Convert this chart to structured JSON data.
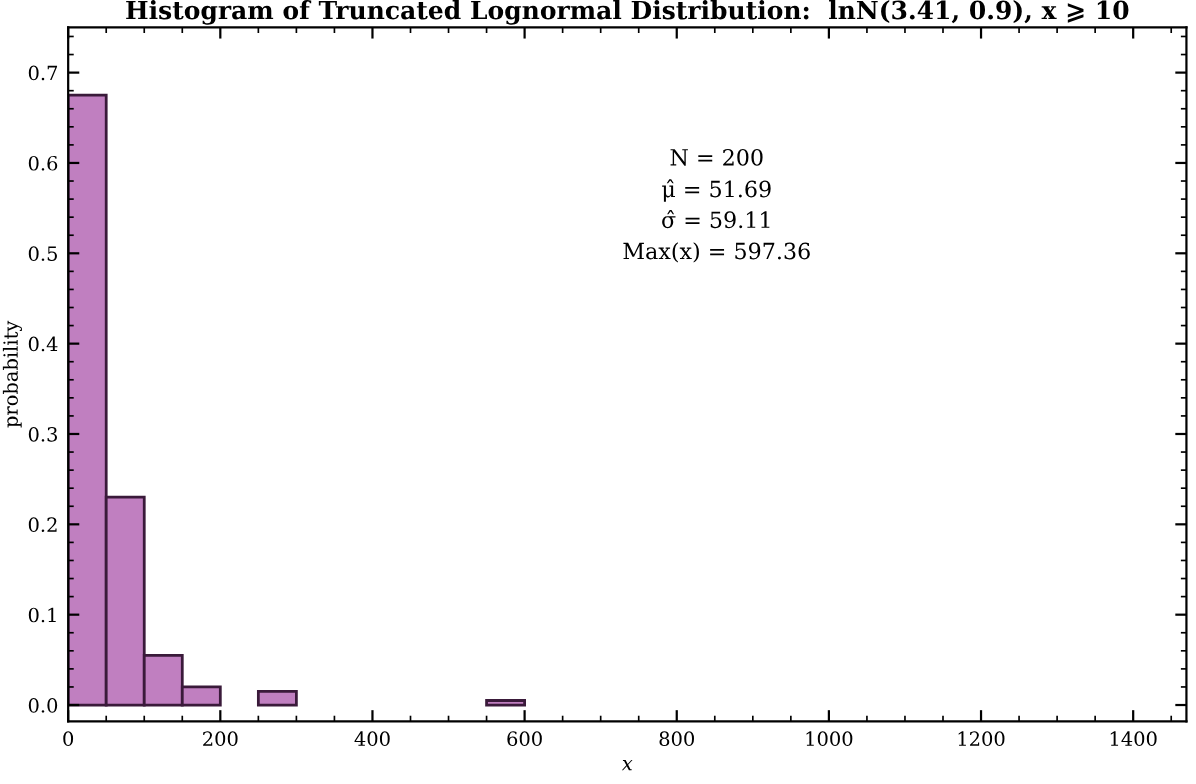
{
  "chart_data": {
    "type": "histogram",
    "title": "Histogram of Truncated Lognormal Distribution:  lnN(3.41, 0.9), x ⩾ 10",
    "xlabel": "x",
    "ylabel": "probability",
    "bins": [
      0,
      50,
      100,
      150,
      200,
      250,
      300,
      350,
      400,
      450,
      500,
      550,
      600
    ],
    "values": [
      0.675,
      0.23,
      0.055,
      0.02,
      0,
      0.015,
      0,
      0,
      0,
      0,
      0,
      0.005
    ],
    "color": "#c07fc0",
    "xlim": [
      0,
      1470
    ],
    "ylim": [
      -0.018,
      0.75
    ],
    "xticks": [
      0,
      200,
      400,
      600,
      800,
      1000,
      1200,
      1400
    ],
    "yticks": [
      {
        "value": 0,
        "label": "0.0"
      },
      0.1,
      0.2,
      0.3,
      0.4,
      0.5,
      0.6,
      0.7
    ],
    "annotations": [
      "N = 200",
      "μ̂ = 51.69",
      "σ̂ = 59.11",
      "Max(x) = 597.36"
    ],
    "grid": false,
    "legend": false
  }
}
